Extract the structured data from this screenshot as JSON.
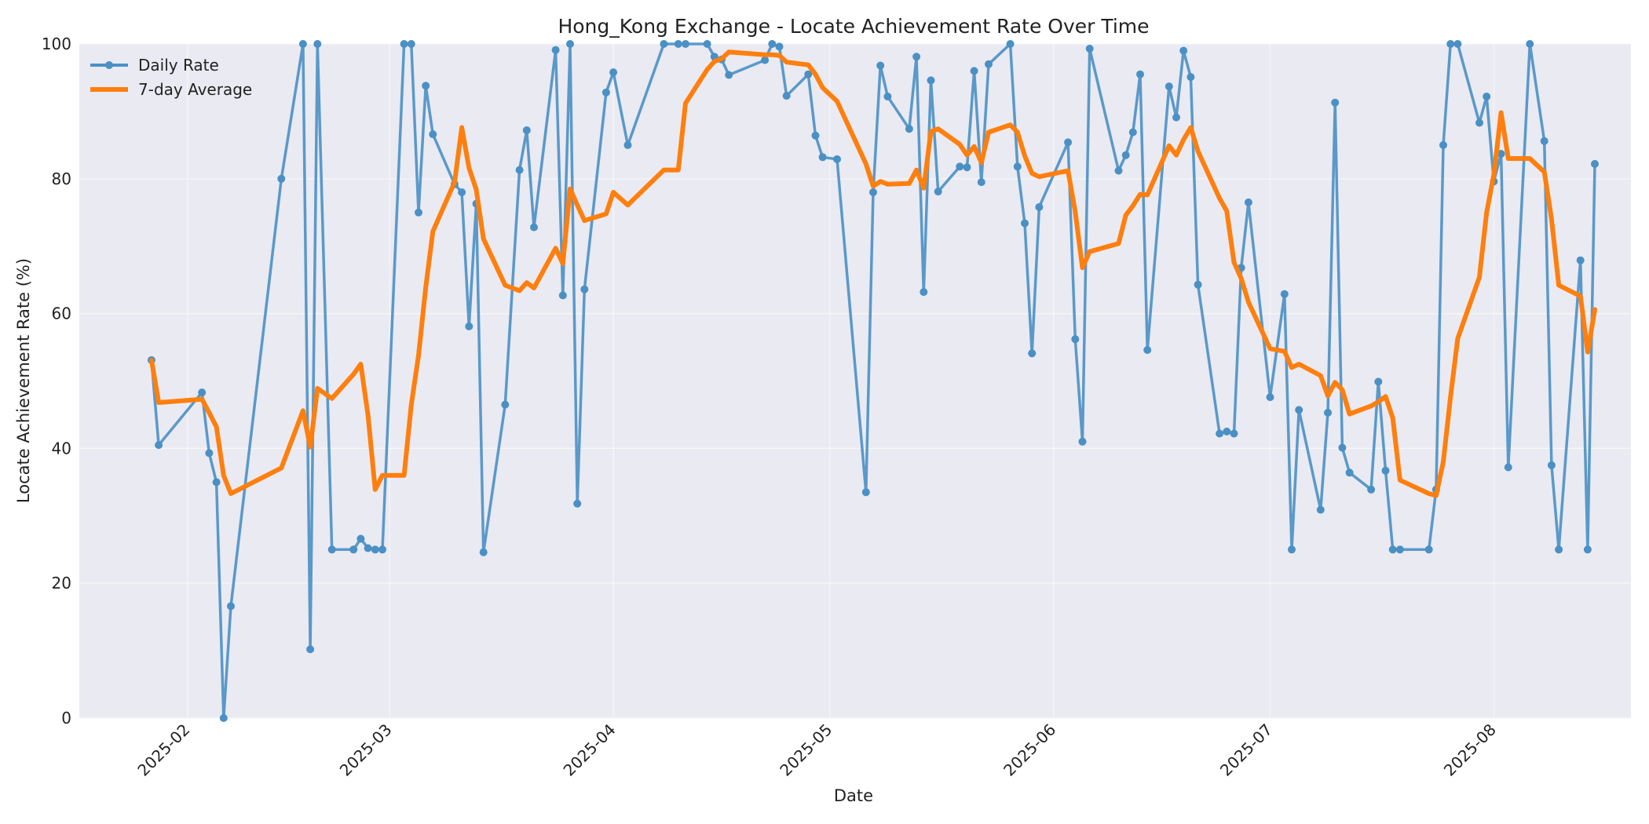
{
  "chart_data": {
    "type": "line",
    "title": "Hong_Kong Exchange - Locate Achievement Rate Over Time",
    "xlabel": "Date",
    "ylabel": "Locate Achievement Rate (%)",
    "ylim": [
      0,
      100
    ],
    "xlim": [
      "2025-01-17",
      "2025-08-20"
    ],
    "y_ticks": [
      0,
      20,
      40,
      60,
      80,
      100
    ],
    "x_ticks": [
      {
        "date": "2025-02-01",
        "label": "2025-02"
      },
      {
        "date": "2025-03-01",
        "label": "2025-03"
      },
      {
        "date": "2025-04-01",
        "label": "2025-04"
      },
      {
        "date": "2025-05-01",
        "label": "2025-05"
      },
      {
        "date": "2025-06-01",
        "label": "2025-06"
      },
      {
        "date": "2025-07-01",
        "label": "2025-07"
      },
      {
        "date": "2025-08-01",
        "label": "2025-08"
      }
    ],
    "grid": true,
    "legend_position": "top-left",
    "colors": {
      "plot_background": "#eaeaf2",
      "grid": "#f7f7f7"
    },
    "series": [
      {
        "name": "Daily Rate",
        "color": "#4a90c4",
        "marker": "circle",
        "points": [
          [
            "2025-01-27",
            53.1
          ],
          [
            "2025-01-28",
            40.5
          ],
          [
            "2025-02-03",
            48.3
          ],
          [
            "2025-02-04",
            39.3
          ],
          [
            "2025-02-05",
            35.0
          ],
          [
            "2025-02-06",
            0.0
          ],
          [
            "2025-02-07",
            16.6
          ],
          [
            "2025-02-14",
            80.0
          ],
          [
            "2025-02-17",
            100.0
          ],
          [
            "2025-02-18",
            10.2
          ],
          [
            "2025-02-19",
            100.0
          ],
          [
            "2025-02-21",
            25.0
          ],
          [
            "2025-02-24",
            25.0
          ],
          [
            "2025-02-25",
            26.6
          ],
          [
            "2025-02-26",
            25.2
          ],
          [
            "2025-02-27",
            25.0
          ],
          [
            "2025-02-28",
            25.0
          ],
          [
            "2025-03-03",
            100.0
          ],
          [
            "2025-03-04",
            100.0
          ],
          [
            "2025-03-05",
            75.0
          ],
          [
            "2025-03-06",
            93.8
          ],
          [
            "2025-03-07",
            86.6
          ],
          [
            "2025-03-10",
            79.2
          ],
          [
            "2025-03-11",
            78.0
          ],
          [
            "2025-03-12",
            58.1
          ],
          [
            "2025-03-13",
            76.3
          ],
          [
            "2025-03-14",
            24.6
          ],
          [
            "2025-03-17",
            46.5
          ],
          [
            "2025-03-19",
            81.3
          ],
          [
            "2025-03-20",
            87.2
          ],
          [
            "2025-03-21",
            72.8
          ],
          [
            "2025-03-24",
            99.1
          ],
          [
            "2025-03-25",
            62.7
          ],
          [
            "2025-03-26",
            100.0
          ],
          [
            "2025-03-27",
            31.8
          ],
          [
            "2025-03-28",
            63.6
          ],
          [
            "2025-03-31",
            92.8
          ],
          [
            "2025-04-01",
            95.8
          ],
          [
            "2025-04-03",
            85.0
          ],
          [
            "2025-04-08",
            100.0
          ],
          [
            "2025-04-10",
            100.0
          ],
          [
            "2025-04-11",
            100.0
          ],
          [
            "2025-04-14",
            100.0
          ],
          [
            "2025-04-15",
            98.1
          ],
          [
            "2025-04-16",
            97.7
          ],
          [
            "2025-04-17",
            95.4
          ],
          [
            "2025-04-22",
            97.6
          ],
          [
            "2025-04-23",
            100.0
          ],
          [
            "2025-04-24",
            99.6
          ],
          [
            "2025-04-25",
            92.3
          ],
          [
            "2025-04-28",
            95.5
          ],
          [
            "2025-04-29",
            86.4
          ],
          [
            "2025-04-30",
            83.2
          ],
          [
            "2025-05-02",
            82.9
          ],
          [
            "2025-05-06",
            33.5
          ],
          [
            "2025-05-07",
            78.0
          ],
          [
            "2025-05-08",
            96.8
          ],
          [
            "2025-05-09",
            92.2
          ],
          [
            "2025-05-12",
            87.4
          ],
          [
            "2025-05-13",
            98.1
          ],
          [
            "2025-05-14",
            63.2
          ],
          [
            "2025-05-15",
            94.6
          ],
          [
            "2025-05-16",
            78.1
          ],
          [
            "2025-05-19",
            81.8
          ],
          [
            "2025-05-20",
            81.7
          ],
          [
            "2025-05-21",
            96.0
          ],
          [
            "2025-05-22",
            79.5
          ],
          [
            "2025-05-23",
            97.0
          ],
          [
            "2025-05-26",
            100.0
          ],
          [
            "2025-05-27",
            81.8
          ],
          [
            "2025-05-28",
            73.4
          ],
          [
            "2025-05-29",
            54.1
          ],
          [
            "2025-05-30",
            75.8
          ],
          [
            "2025-06-03",
            85.4
          ],
          [
            "2025-06-04",
            56.2
          ],
          [
            "2025-06-05",
            41.0
          ],
          [
            "2025-06-06",
            99.3
          ],
          [
            "2025-06-10",
            81.2
          ],
          [
            "2025-06-11",
            83.5
          ],
          [
            "2025-06-12",
            86.9
          ],
          [
            "2025-06-13",
            95.5
          ],
          [
            "2025-06-14",
            54.6
          ],
          [
            "2025-06-17",
            93.7
          ],
          [
            "2025-06-18",
            89.1
          ],
          [
            "2025-06-19",
            99.0
          ],
          [
            "2025-06-20",
            95.1
          ],
          [
            "2025-06-21",
            64.3
          ],
          [
            "2025-06-24",
            42.2
          ],
          [
            "2025-06-25",
            42.5
          ],
          [
            "2025-06-26",
            42.2
          ],
          [
            "2025-06-27",
            66.8
          ],
          [
            "2025-06-28",
            76.5
          ],
          [
            "2025-07-01",
            47.6
          ],
          [
            "2025-07-03",
            62.9
          ],
          [
            "2025-07-04",
            25.0
          ],
          [
            "2025-07-05",
            45.7
          ],
          [
            "2025-07-08",
            30.9
          ],
          [
            "2025-07-09",
            45.3
          ],
          [
            "2025-07-10",
            91.3
          ],
          [
            "2025-07-11",
            40.1
          ],
          [
            "2025-07-12",
            36.4
          ],
          [
            "2025-07-15",
            33.9
          ],
          [
            "2025-07-16",
            49.9
          ],
          [
            "2025-07-17",
            36.7
          ],
          [
            "2025-07-18",
            25.0
          ],
          [
            "2025-07-19",
            25.0
          ],
          [
            "2025-07-23",
            25.0
          ],
          [
            "2025-07-24",
            33.9
          ],
          [
            "2025-07-25",
            85.0
          ],
          [
            "2025-07-26",
            100.0
          ],
          [
            "2025-07-27",
            100.0
          ],
          [
            "2025-07-30",
            88.3
          ],
          [
            "2025-07-31",
            92.2
          ],
          [
            "2025-08-01",
            79.6
          ],
          [
            "2025-08-02",
            83.7
          ],
          [
            "2025-08-03",
            37.2
          ],
          [
            "2025-08-06",
            100.0
          ],
          [
            "2025-08-08",
            85.6
          ],
          [
            "2025-08-09",
            37.5
          ],
          [
            "2025-08-10",
            25.0
          ],
          [
            "2025-08-13",
            67.9
          ],
          [
            "2025-08-14",
            25.0
          ],
          [
            "2025-08-15",
            82.2
          ]
        ]
      },
      {
        "name": "7-day Average",
        "color": "#ff7f0e",
        "marker": "none",
        "points": [
          [
            "2025-01-27",
            53.1
          ],
          [
            "2025-01-28",
            46.8
          ],
          [
            "2025-02-03",
            47.3
          ],
          [
            "2025-02-04",
            45.3
          ],
          [
            "2025-02-05",
            43.2
          ],
          [
            "2025-02-06",
            36.0
          ],
          [
            "2025-02-07",
            33.3
          ],
          [
            "2025-02-14",
            37.1
          ],
          [
            "2025-02-17",
            45.6
          ],
          [
            "2025-02-18",
            40.2
          ],
          [
            "2025-02-19",
            48.9
          ],
          [
            "2025-02-21",
            47.4
          ],
          [
            "2025-02-24",
            51.0
          ],
          [
            "2025-02-25",
            52.5
          ],
          [
            "2025-02-26",
            45.0
          ],
          [
            "2025-02-27",
            33.9
          ],
          [
            "2025-02-28",
            36.0
          ],
          [
            "2025-03-03",
            36.0
          ],
          [
            "2025-03-04",
            46.5
          ],
          [
            "2025-03-05",
            53.8
          ],
          [
            "2025-03-06",
            63.9
          ],
          [
            "2025-03-07",
            72.2
          ],
          [
            "2025-03-10",
            79.5
          ],
          [
            "2025-03-11",
            87.6
          ],
          [
            "2025-03-12",
            81.6
          ],
          [
            "2025-03-13",
            78.4
          ],
          [
            "2025-03-14",
            71.1
          ],
          [
            "2025-03-17",
            64.2
          ],
          [
            "2025-03-19",
            63.4
          ],
          [
            "2025-03-20",
            64.6
          ],
          [
            "2025-03-21",
            63.8
          ],
          [
            "2025-03-24",
            69.7
          ],
          [
            "2025-03-25",
            67.4
          ],
          [
            "2025-03-26",
            78.5
          ],
          [
            "2025-03-27",
            76.1
          ],
          [
            "2025-03-28",
            73.8
          ],
          [
            "2025-03-31",
            74.8
          ],
          [
            "2025-04-01",
            78.0
          ],
          [
            "2025-04-03",
            76.1
          ],
          [
            "2025-04-08",
            81.3
          ],
          [
            "2025-04-10",
            81.3
          ],
          [
            "2025-04-11",
            91.2
          ],
          [
            "2025-04-14",
            96.2
          ],
          [
            "2025-04-15",
            97.4
          ],
          [
            "2025-04-16",
            97.8
          ],
          [
            "2025-04-17",
            98.8
          ],
          [
            "2025-04-22",
            98.4
          ],
          [
            "2025-04-23",
            98.4
          ],
          [
            "2025-04-24",
            98.3
          ],
          [
            "2025-04-25",
            97.3
          ],
          [
            "2025-04-28",
            96.9
          ],
          [
            "2025-04-29",
            95.5
          ],
          [
            "2025-04-30",
            93.5
          ],
          [
            "2025-05-02",
            91.5
          ],
          [
            "2025-05-06",
            82.2
          ],
          [
            "2025-05-07",
            78.9
          ],
          [
            "2025-05-08",
            79.6
          ],
          [
            "2025-05-09",
            79.2
          ],
          [
            "2025-05-12",
            79.3
          ],
          [
            "2025-05-13",
            81.3
          ],
          [
            "2025-05-14",
            78.6
          ],
          [
            "2025-05-15",
            87.0
          ],
          [
            "2025-05-16",
            87.4
          ],
          [
            "2025-05-19",
            85.1
          ],
          [
            "2025-05-20",
            83.5
          ],
          [
            "2025-05-21",
            84.8
          ],
          [
            "2025-05-22",
            82.4
          ],
          [
            "2025-05-23",
            86.9
          ],
          [
            "2025-05-26",
            88.0
          ],
          [
            "2025-05-27",
            86.9
          ],
          [
            "2025-05-28",
            83.4
          ],
          [
            "2025-05-29",
            80.8
          ],
          [
            "2025-05-30",
            80.3
          ],
          [
            "2025-06-03",
            81.2
          ],
          [
            "2025-06-04",
            75.1
          ],
          [
            "2025-06-05",
            66.8
          ],
          [
            "2025-06-06",
            69.2
          ],
          [
            "2025-06-10",
            70.4
          ],
          [
            "2025-06-11",
            74.6
          ],
          [
            "2025-06-12",
            76.0
          ],
          [
            "2025-06-13",
            77.7
          ],
          [
            "2025-06-14",
            77.6
          ],
          [
            "2025-06-17",
            84.9
          ],
          [
            "2025-06-18",
            83.5
          ],
          [
            "2025-06-19",
            85.8
          ],
          [
            "2025-06-20",
            87.6
          ],
          [
            "2025-06-21",
            84.1
          ],
          [
            "2025-06-24",
            77.1
          ],
          [
            "2025-06-25",
            75.2
          ],
          [
            "2025-06-26",
            67.6
          ],
          [
            "2025-06-27",
            65.2
          ],
          [
            "2025-06-28",
            61.7
          ],
          [
            "2025-07-01",
            54.8
          ],
          [
            "2025-07-03",
            54.4
          ],
          [
            "2025-07-04",
            52.0
          ],
          [
            "2025-07-05",
            52.5
          ],
          [
            "2025-07-08",
            50.8
          ],
          [
            "2025-07-09",
            47.8
          ],
          [
            "2025-07-10",
            49.8
          ],
          [
            "2025-07-11",
            48.7
          ],
          [
            "2025-07-12",
            45.1
          ],
          [
            "2025-07-15",
            46.3
          ],
          [
            "2025-07-16",
            46.9
          ],
          [
            "2025-07-17",
            47.7
          ],
          [
            "2025-07-18",
            44.5
          ],
          [
            "2025-07-19",
            35.3
          ],
          [
            "2025-07-23",
            33.3
          ],
          [
            "2025-07-24",
            33.0
          ],
          [
            "2025-07-25",
            38.0
          ],
          [
            "2025-07-26",
            47.6
          ],
          [
            "2025-07-27",
            56.3
          ],
          [
            "2025-07-30",
            65.4
          ],
          [
            "2025-07-31",
            75.0
          ],
          [
            "2025-08-01",
            80.6
          ],
          [
            "2025-08-02",
            89.8
          ],
          [
            "2025-08-03",
            83.0
          ],
          [
            "2025-08-06",
            83.0
          ],
          [
            "2025-08-08",
            81.0
          ],
          [
            "2025-08-09",
            74.0
          ],
          [
            "2025-08-10",
            64.2
          ],
          [
            "2025-08-13",
            62.6
          ],
          [
            "2025-08-14",
            54.3
          ],
          [
            "2025-08-15",
            60.6
          ]
        ]
      }
    ]
  }
}
